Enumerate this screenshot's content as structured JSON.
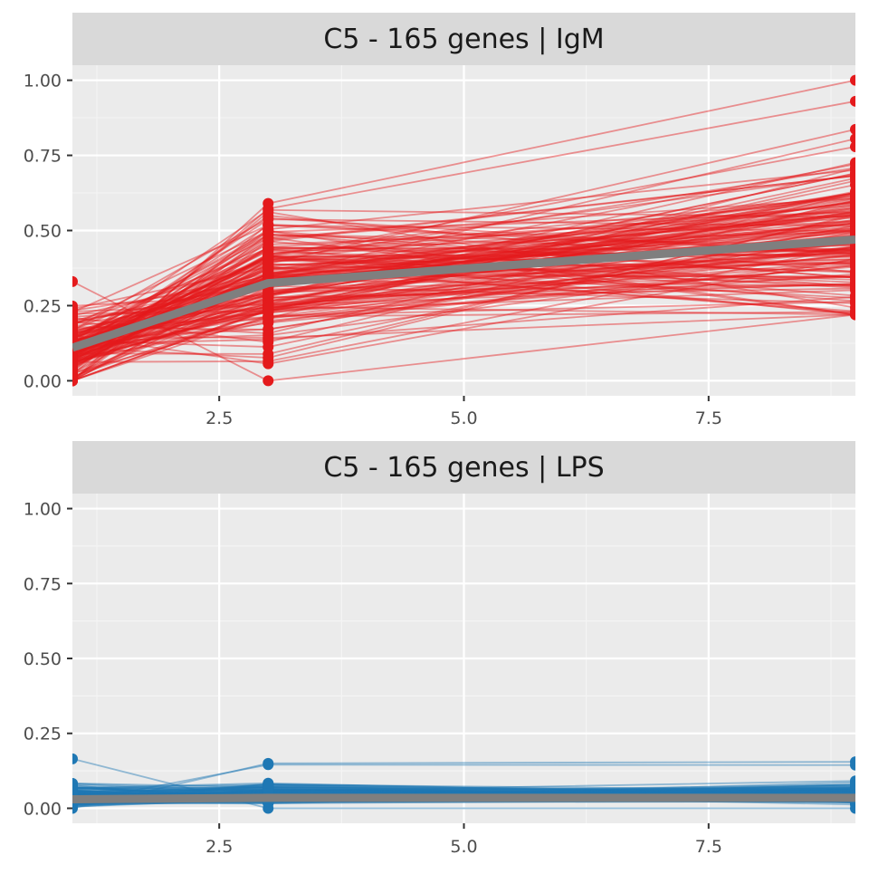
{
  "chart_data": [
    {
      "type": "line",
      "title": "C5 - 165 genes | IgM",
      "xlim": [
        1,
        9
      ],
      "ylim": [
        -0.05,
        1.05
      ],
      "x_ticks": [
        "2.5",
        "5.0",
        "7.5"
      ],
      "y_ticks": [
        "0.00",
        "0.25",
        "0.50",
        "0.75",
        "1.00"
      ],
      "grid": true,
      "legend": "none",
      "x": [
        1,
        3,
        9
      ],
      "gene_count": 165,
      "gene_line_color": "#e41a1c",
      "mean_line_color": "#7f7f7f",
      "mean": [
        0.11,
        0.325,
        0.47
      ],
      "gene_value_ranges": [
        [
          0.0,
          0.33
        ],
        [
          0.0,
          0.59
        ],
        [
          0.22,
          1.0
        ]
      ]
    },
    {
      "type": "line",
      "title": "C5 - 165 genes | LPS",
      "xlim": [
        1,
        9
      ],
      "ylim": [
        -0.05,
        1.05
      ],
      "x_ticks": [
        "2.5",
        "5.0",
        "7.5"
      ],
      "y_ticks": [
        "0.00",
        "0.25",
        "0.50",
        "0.75",
        "1.00"
      ],
      "grid": true,
      "legend": "none",
      "x": [
        1,
        3,
        9
      ],
      "gene_count": 165,
      "gene_line_color": "#1f78b4",
      "mean_line_color": "#7f7f7f",
      "mean": [
        0.03,
        0.035,
        0.035
      ],
      "gene_value_ranges": [
        [
          0.0,
          0.165
        ],
        [
          0.0,
          0.15
        ],
        [
          0.0,
          0.155
        ]
      ]
    }
  ]
}
